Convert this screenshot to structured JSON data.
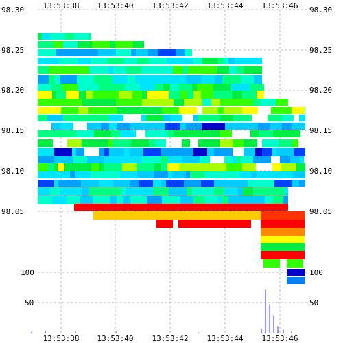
{
  "chart_data": [
    {
      "type": "heatmap",
      "title": "",
      "x_ticks": [
        "13:53:38",
        "13:53:40",
        "13:53:42",
        "13:53:44",
        "13:53:46"
      ],
      "y_ticks": [
        "98.30",
        "98.25",
        "98.20",
        "98.15",
        "98.10",
        "98.05"
      ],
      "ylim": [
        98.04,
        98.3
      ],
      "grid": true,
      "axes_labels_on": [
        "top",
        "bottom",
        "left",
        "right"
      ],
      "note_colors": {
        "low": "#0000cc",
        "mid": "#00e5ff",
        "high": "#ffff00",
        "max": "#ff0000"
      }
    },
    {
      "type": "bar",
      "title": "",
      "y_ticks": [
        "100",
        "50"
      ],
      "ylim": [
        0,
        130
      ],
      "x_ticks": [
        "13:53:38",
        "13:53:40",
        "13:53:42",
        "13:53:44",
        "13:53:46"
      ],
      "bar_color": "#9999ff",
      "series": [
        {
          "x_seconds": [
            36.9,
            37.4,
            38.5,
            40.0,
            43.0,
            45.3,
            45.45,
            45.6,
            45.75,
            45.9,
            46.1,
            46.4
          ],
          "values": [
            3,
            5,
            4,
            3,
            2,
            8,
            72,
            48,
            30,
            12,
            6,
            4
          ]
        }
      ]
    }
  ]
}
